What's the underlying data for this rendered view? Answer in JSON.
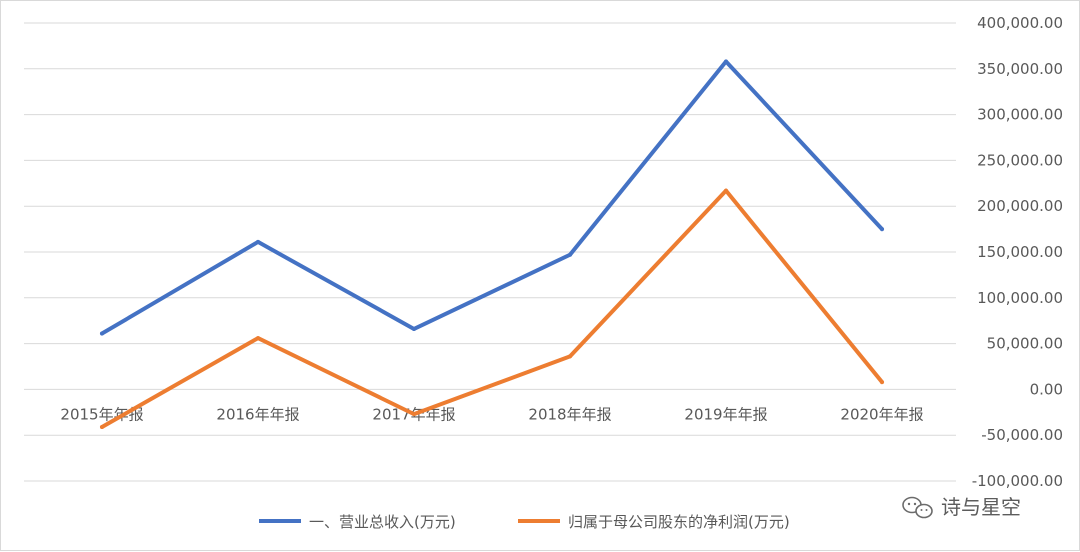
{
  "chart_data": {
    "type": "line",
    "categories": [
      "2015年年报",
      "2016年年报",
      "2017年年报",
      "2018年年报",
      "2019年年报",
      "2020年年报"
    ],
    "series": [
      {
        "name": "一、营业总收入(万元)",
        "values": [
          61000,
          161000,
          66000,
          147000,
          358000,
          175000
        ],
        "color": "#4472c4"
      },
      {
        "name": "归属于母公司股东的净利润(万元)",
        "values": [
          -41000,
          56000,
          -27000,
          36000,
          217000,
          8000
        ],
        "color": "#ed7d31"
      }
    ],
    "ylim": [
      -100000,
      400000
    ],
    "ytick_step": 50000,
    "y_ticks": [
      "400,000.00",
      "350,000.00",
      "300,000.00",
      "250,000.00",
      "200,000.00",
      "150,000.00",
      "100,000.00",
      "50,000.00",
      "0.00",
      "-50,000.00",
      "-100,000.00"
    ],
    "y_axis_side": "right",
    "grid": true,
    "legend_position": "bottom",
    "title": "",
    "xlabel": "",
    "ylabel": ""
  },
  "watermark": {
    "text": "诗与星空",
    "icon": "wechat-icon"
  },
  "colors": {
    "grid": "#d9d9d9",
    "tick_text": "#595959"
  }
}
